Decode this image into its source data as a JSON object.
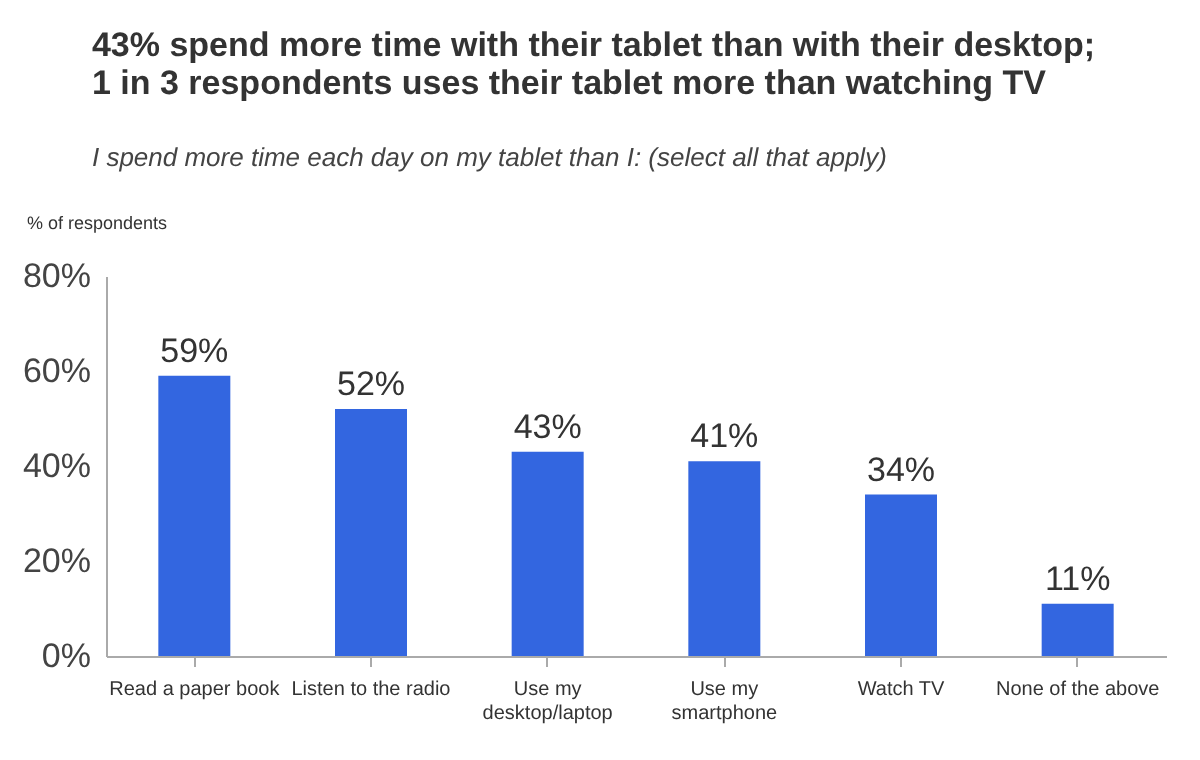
{
  "chart_data": {
    "type": "bar",
    "title": "43% spend more time with their tablet than with their desktop;\n1 in 3 respondents uses their tablet more than watching TV",
    "subtitle": "I spend more time each day on my tablet than I: (select all that apply)",
    "ylabel": "% of respondents",
    "categories": [
      "Read a paper book",
      "Listen to the radio",
      "Use my\ndesktop/laptop",
      "Use my\nsmartphone",
      "Watch TV",
      "None of the above"
    ],
    "values": [
      59,
      52,
      43,
      41,
      34,
      11
    ],
    "value_labels": [
      "59%",
      "52%",
      "43%",
      "41%",
      "34%",
      "11%"
    ],
    "color": "#3366e0",
    "ylim": [
      0,
      80
    ],
    "yticks": [
      {
        "value": 0,
        "label": "0%"
      },
      {
        "value": 20,
        "label": "20%"
      },
      {
        "value": 40,
        "label": "40%"
      },
      {
        "value": 60,
        "label": "60%"
      },
      {
        "value": 80,
        "label": "80%"
      }
    ],
    "grid": false
  }
}
